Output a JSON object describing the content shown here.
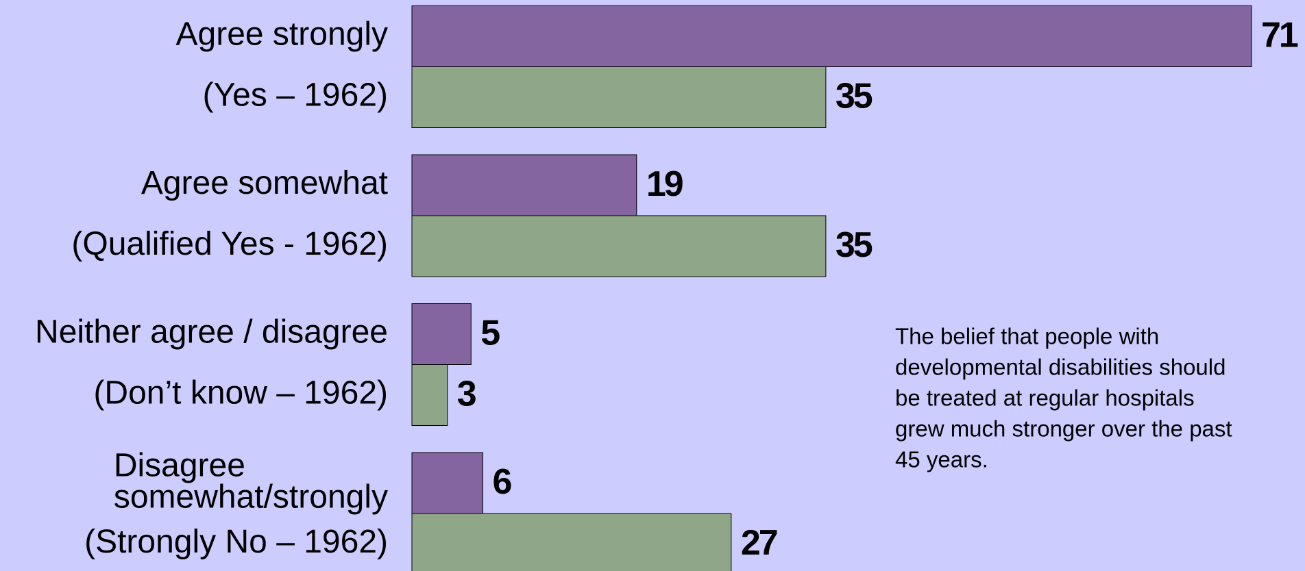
{
  "chart_data": {
    "type": "bar",
    "orientation": "horizontal",
    "series": [
      {
        "color": "#8565a0",
        "labels": [
          "Agree strongly",
          "Agree somewhat",
          "Neither agree / disagree",
          "Disagree\nsomewhat/strongly"
        ],
        "values": [
          71,
          19,
          5,
          6
        ]
      },
      {
        "color": "#8fa688",
        "labels": [
          "(Yes – 1962)",
          "(Qualified Yes - 1962)",
          "(Don’t know – 1962)",
          "(Strongly No – 1962)"
        ],
        "values": [
          35,
          35,
          3,
          27
        ]
      }
    ],
    "annotation": [
      "The belief that people with",
      "developmental disabilities should",
      "be treated at regular hospitals",
      "grew much stronger over the past",
      "45 years."
    ]
  }
}
